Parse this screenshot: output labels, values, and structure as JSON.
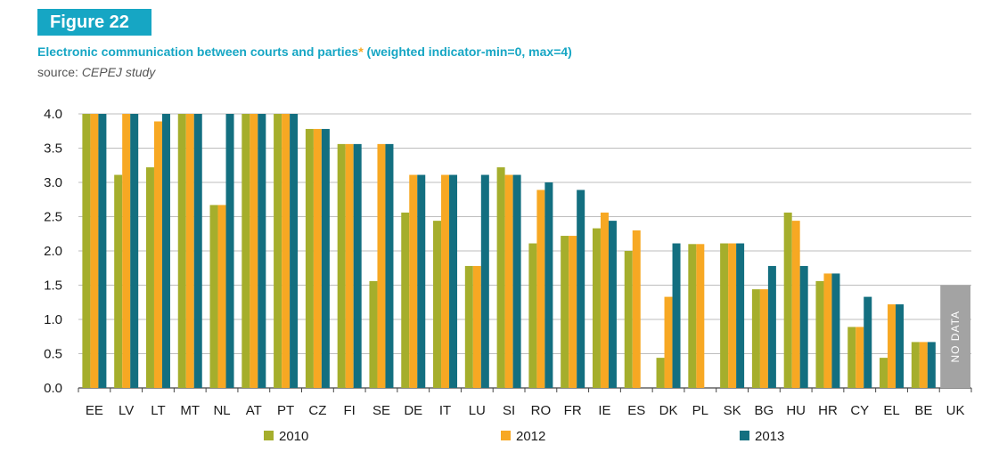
{
  "figure_label": "Figure 22",
  "title_main": "Electronic communication between courts and parties",
  "title_star": "*",
  "title_suffix": " (weighted indicator-min=0, max=4)",
  "source_prefix": "source: ",
  "source_name": "CEPEJ study",
  "colors": {
    "2010": "#a5ae2c",
    "2012": "#f7a823",
    "2013": "#136f80",
    "nodata": "#a3a3a3",
    "accent": "#16a6c4"
  },
  "chart_data": {
    "type": "bar",
    "categories": [
      "EE",
      "LV",
      "LT",
      "MT",
      "NL",
      "AT",
      "PT",
      "CZ",
      "FI",
      "SE",
      "DE",
      "IT",
      "LU",
      "SI",
      "RO",
      "FR",
      "IE",
      "ES",
      "DK",
      "PL",
      "SK",
      "BG",
      "HU",
      "HR",
      "CY",
      "EL",
      "BE",
      "UK"
    ],
    "series": [
      {
        "name": "2010",
        "values": [
          4.0,
          3.11,
          3.22,
          4.0,
          2.67,
          4.0,
          4.0,
          3.78,
          3.56,
          1.56,
          2.56,
          2.44,
          1.78,
          3.22,
          2.11,
          2.22,
          2.33,
          2.0,
          0.44,
          2.1,
          2.11,
          1.44,
          2.56,
          1.56,
          0.89,
          0.44,
          0.67,
          null
        ]
      },
      {
        "name": "2012",
        "values": [
          4.0,
          4.0,
          3.89,
          4.0,
          2.67,
          4.0,
          4.0,
          3.78,
          3.56,
          3.56,
          3.11,
          3.11,
          1.78,
          3.11,
          2.89,
          2.22,
          2.56,
          2.3,
          1.33,
          2.1,
          2.11,
          1.44,
          2.44,
          1.67,
          0.89,
          1.22,
          0.67,
          null
        ]
      },
      {
        "name": "2013",
        "values": [
          4.0,
          4.0,
          4.0,
          4.0,
          4.0,
          4.0,
          4.0,
          3.78,
          3.56,
          3.56,
          3.11,
          3.11,
          3.11,
          3.11,
          3.0,
          2.89,
          2.44,
          null,
          2.11,
          null,
          2.11,
          1.78,
          1.78,
          1.67,
          1.33,
          1.22,
          0.67,
          null
        ]
      }
    ],
    "ylim": [
      0,
      4
    ],
    "yticks": [
      "0.0",
      "0.5",
      "1.0",
      "1.5",
      "2.0",
      "2.5",
      "3.0",
      "3.5",
      "4.0"
    ],
    "no_data": {
      "category": "UK",
      "label": "NO DATA",
      "value": 1.5
    },
    "grid": true,
    "legend_position": "bottom"
  }
}
